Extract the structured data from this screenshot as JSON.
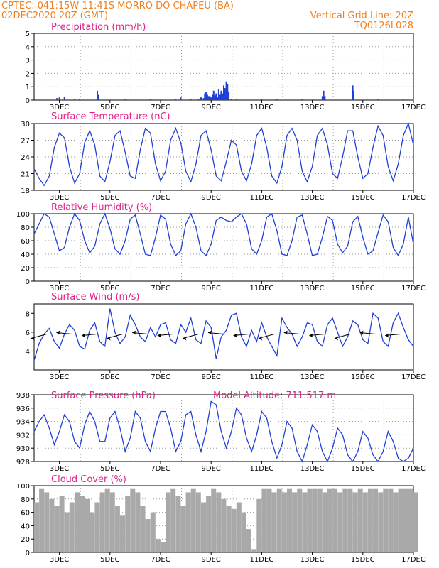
{
  "header": {
    "line1_left": "CPTEC:  041:15W-11:41S  MORRO DO CHAPEU (BA)",
    "line2_left": "02DEC2020 20Z (GMT)",
    "line2_right": "Vertical Grid Line: 20Z",
    "line3_right": "TQ0126L028"
  },
  "colors": {
    "header": "#f07f1e",
    "panel_title": "#e0218a",
    "series": "#1f3fd6",
    "cloud": "#a9a9a9",
    "grid": "#9a9a9a"
  },
  "x_axis": {
    "ticks": [
      "3DEC",
      "5DEC",
      "7DEC",
      "9DEC",
      "11DEC",
      "13DEC",
      "15DEC",
      "17DEC"
    ]
  },
  "chart_data": [
    {
      "id": "precip",
      "type": "bar",
      "title": "Precipitation (mm/h)",
      "ylim": [
        0,
        5
      ],
      "yticks": [
        "0",
        "1",
        "2",
        "3",
        "4",
        "5"
      ],
      "grid": true,
      "x": [
        2.9,
        3.0,
        3.2,
        3.6,
        3.8,
        4.5,
        4.55,
        5.6,
        6.6,
        7.6,
        7.8,
        8.2,
        8.5,
        8.6,
        8.7,
        8.75,
        8.8,
        8.85,
        8.9,
        8.95,
        9.0,
        9.05,
        9.1,
        9.15,
        9.2,
        9.25,
        9.3,
        9.35,
        9.4,
        9.45,
        9.5,
        9.55,
        9.6,
        9.65,
        9.7,
        9.8,
        10.0,
        11.0,
        11.6,
        12.6,
        13.4,
        13.45,
        13.5,
        14.6,
        14.62,
        15.6,
        16.6
      ],
      "values": [
        0.15,
        0.2,
        0.25,
        0.1,
        0.1,
        0.7,
        0.4,
        0.1,
        0.1,
        0.1,
        0.2,
        0.1,
        0.1,
        0.2,
        0.15,
        0.5,
        0.6,
        0.4,
        0.3,
        0.3,
        0.2,
        0.4,
        0.7,
        0.35,
        0.5,
        0.2,
        0.8,
        0.4,
        0.7,
        0.5,
        1.1,
        0.9,
        1.4,
        1.2,
        0.6,
        0.1,
        0.1,
        0.1,
        0.1,
        0.1,
        0.3,
        0.7,
        0.3,
        1.1,
        0.7,
        0.1,
        0.1
      ]
    },
    {
      "id": "temp",
      "type": "line",
      "title": "Surface Temperature (nC)",
      "ylim": [
        16,
        30
      ],
      "yticks": [
        "18",
        "21",
        "24",
        "27",
        "30"
      ],
      "grid": true,
      "x": [
        2.0,
        2.2,
        2.4,
        2.6,
        2.8,
        3.0,
        3.2,
        3.4,
        3.6,
        3.8,
        4.0,
        4.2,
        4.4,
        4.6,
        4.8,
        5.0,
        5.2,
        5.4,
        5.6,
        5.8,
        6.0,
        6.2,
        6.4,
        6.6,
        6.8,
        7.0,
        7.2,
        7.4,
        7.6,
        7.8,
        8.0,
        8.2,
        8.4,
        8.6,
        8.8,
        9.0,
        9.2,
        9.4,
        9.6,
        9.8,
        10.0,
        10.2,
        10.4,
        10.6,
        10.8,
        11.0,
        11.2,
        11.4,
        11.6,
        11.8,
        12.0,
        12.2,
        12.4,
        12.6,
        12.8,
        13.0,
        13.2,
        13.4,
        13.6,
        13.8,
        14.0,
        14.2,
        14.4,
        14.6,
        14.8,
        15.0,
        15.2,
        15.4,
        15.6,
        15.8,
        16.0,
        16.2,
        16.4,
        16.6,
        16.8,
        17.0
      ],
      "values": [
        20.5,
        18.5,
        17.0,
        19.0,
        25.0,
        28.0,
        27.0,
        21.0,
        17.5,
        19.5,
        26.0,
        28.5,
        25.5,
        19.0,
        17.8,
        22.0,
        27.5,
        28.5,
        24.0,
        19.0,
        18.5,
        24.5,
        29.0,
        28.0,
        21.5,
        18.0,
        20.0,
        26.5,
        29.0,
        26.0,
        20.0,
        17.8,
        21.5,
        27.5,
        28.5,
        24.5,
        19.0,
        18.0,
        22.0,
        26.5,
        25.5,
        20.0,
        18.0,
        21.5,
        27.5,
        29.0,
        25.0,
        19.0,
        17.5,
        21.0,
        27.5,
        29.0,
        26.5,
        20.0,
        17.8,
        21.0,
        27.5,
        29.0,
        25.5,
        19.5,
        18.5,
        23.0,
        28.5,
        28.5,
        23.0,
        18.5,
        19.5,
        25.0,
        29.5,
        27.5,
        21.0,
        18.0,
        21.5,
        27.5,
        30.0,
        25.5
      ]
    },
    {
      "id": "rh",
      "type": "line",
      "title": "Relative Humidity (%)",
      "ylim": [
        0,
        100
      ],
      "yticks": [
        "0",
        "20",
        "40",
        "60",
        "80",
        "100"
      ],
      "grid": true,
      "x": [
        2.0,
        2.2,
        2.4,
        2.6,
        2.8,
        3.0,
        3.2,
        3.4,
        3.6,
        3.8,
        4.0,
        4.2,
        4.4,
        4.6,
        4.8,
        5.0,
        5.2,
        5.4,
        5.6,
        5.8,
        6.0,
        6.2,
        6.4,
        6.6,
        6.8,
        7.0,
        7.2,
        7.4,
        7.6,
        7.8,
        8.0,
        8.2,
        8.4,
        8.6,
        8.8,
        9.0,
        9.2,
        9.4,
        9.6,
        9.8,
        10.0,
        10.2,
        10.4,
        10.6,
        10.8,
        11.0,
        11.2,
        11.4,
        11.6,
        11.8,
        12.0,
        12.2,
        12.4,
        12.6,
        12.8,
        13.0,
        13.2,
        13.4,
        13.6,
        13.8,
        14.0,
        14.2,
        14.4,
        14.6,
        14.8,
        15.0,
        15.2,
        15.4,
        15.6,
        15.8,
        16.0,
        16.2,
        16.4,
        16.6,
        16.8,
        17.0
      ],
      "values": [
        70,
        85,
        100,
        95,
        70,
        45,
        50,
        80,
        100,
        90,
        60,
        42,
        52,
        85,
        100,
        78,
        48,
        40,
        60,
        92,
        98,
        70,
        40,
        38,
        65,
        98,
        92,
        55,
        38,
        45,
        85,
        100,
        80,
        45,
        38,
        55,
        90,
        95,
        90,
        88,
        95,
        100,
        85,
        48,
        40,
        60,
        95,
        100,
        75,
        40,
        38,
        60,
        95,
        98,
        70,
        38,
        40,
        65,
        96,
        90,
        55,
        42,
        52,
        88,
        96,
        65,
        40,
        45,
        72,
        98,
        88,
        50,
        38,
        55,
        95,
        55
      ]
    },
    {
      "id": "wind",
      "type": "line",
      "title": "Surface Wind (m/s)",
      "ylim": [
        2,
        9
      ],
      "yticks": [
        "4",
        "6",
        "8"
      ],
      "grid": false,
      "x": [
        2.0,
        2.2,
        2.4,
        2.6,
        2.8,
        3.0,
        3.2,
        3.4,
        3.6,
        3.8,
        4.0,
        4.2,
        4.4,
        4.6,
        4.8,
        5.0,
        5.2,
        5.4,
        5.6,
        5.8,
        6.0,
        6.2,
        6.4,
        6.6,
        6.8,
        7.0,
        7.2,
        7.4,
        7.6,
        7.8,
        8.0,
        8.2,
        8.4,
        8.6,
        8.8,
        9.0,
        9.2,
        9.4,
        9.6,
        9.8,
        10.0,
        10.2,
        10.4,
        10.6,
        10.8,
        11.0,
        11.2,
        11.4,
        11.6,
        11.8,
        12.0,
        12.2,
        12.4,
        12.6,
        12.8,
        13.0,
        13.2,
        13.4,
        13.6,
        13.8,
        14.0,
        14.2,
        14.4,
        14.6,
        14.8,
        15.0,
        15.2,
        15.4,
        15.6,
        15.8,
        16.0,
        16.2,
        16.4,
        16.6,
        16.8,
        17.0
      ],
      "values": [
        3.0,
        4.8,
        5.8,
        6.4,
        5.0,
        4.3,
        5.8,
        6.8,
        6.2,
        4.5,
        4.2,
        6.2,
        7.0,
        5.0,
        4.5,
        8.5,
        6.0,
        4.8,
        5.5,
        7.8,
        6.8,
        5.5,
        5.0,
        6.5,
        5.5,
        6.8,
        7.0,
        5.2,
        4.8,
        6.8,
        6.0,
        7.5,
        5.2,
        4.8,
        7.2,
        6.5,
        3.2,
        5.5,
        6.2,
        7.8,
        8.0,
        5.5,
        4.5,
        6.2,
        5.0,
        7.0,
        5.5,
        4.5,
        3.5,
        7.5,
        6.5,
        5.8,
        4.5,
        5.5,
        7.0,
        6.8,
        5.0,
        4.5,
        6.8,
        7.5,
        6.0,
        4.5,
        5.5,
        7.2,
        6.8,
        5.2,
        4.8,
        8.0,
        7.5,
        5.0,
        4.5,
        7.0,
        8.0,
        6.5,
        5.2,
        4.5
      ]
    },
    {
      "id": "pres",
      "type": "line",
      "title": "Surface Pressure (hPa)",
      "annotation": "Model Altitude: 711.517 m",
      "ylim": [
        928,
        938
      ],
      "yticks": [
        "928",
        "930",
        "932",
        "934",
        "936",
        "938"
      ],
      "grid": true,
      "x": [
        2.0,
        2.2,
        2.4,
        2.6,
        2.8,
        3.0,
        3.2,
        3.4,
        3.6,
        3.8,
        4.0,
        4.2,
        4.4,
        4.6,
        4.8,
        5.0,
        5.2,
        5.4,
        5.6,
        5.8,
        6.0,
        6.2,
        6.4,
        6.6,
        6.8,
        7.0,
        7.2,
        7.4,
        7.6,
        7.8,
        8.0,
        8.2,
        8.4,
        8.6,
        8.8,
        9.0,
        9.2,
        9.4,
        9.6,
        9.8,
        10.0,
        10.2,
        10.4,
        10.6,
        10.8,
        11.0,
        11.2,
        11.4,
        11.6,
        11.8,
        12.0,
        12.2,
        12.4,
        12.6,
        12.8,
        13.0,
        13.2,
        13.4,
        13.6,
        13.8,
        14.0,
        14.2,
        14.4,
        14.6,
        14.8,
        15.0,
        15.2,
        15.4,
        15.6,
        15.8,
        16.0,
        16.2,
        16.4,
        16.6,
        16.8,
        17.0
      ],
      "values": [
        932.5,
        934.0,
        935.0,
        933.0,
        930.5,
        932.5,
        935.0,
        934.0,
        931.0,
        930.0,
        933.5,
        935.5,
        934.0,
        931.0,
        931.0,
        934.5,
        935.5,
        933.0,
        929.5,
        931.5,
        935.5,
        934.5,
        931.0,
        929.5,
        933.0,
        935.5,
        935.5,
        933.0,
        929.5,
        931.0,
        935.0,
        935.5,
        932.0,
        929.5,
        932.5,
        937.0,
        936.5,
        932.5,
        930.0,
        932.5,
        936.0,
        935.0,
        931.5,
        929.5,
        932.0,
        935.5,
        934.5,
        931.0,
        928.5,
        930.5,
        934.0,
        933.0,
        929.5,
        928.0,
        930.5,
        933.5,
        932.5,
        929.5,
        928.0,
        930.0,
        933.0,
        932.0,
        929.0,
        928.0,
        929.5,
        932.5,
        931.5,
        929.0,
        927.5,
        929.5,
        932.5,
        931.0,
        928.5,
        927.5,
        928.5,
        930.0
      ]
    },
    {
      "id": "cloud",
      "type": "bar",
      "title": "Cloud Cover (%)",
      "ylim": [
        0,
        100
      ],
      "yticks": [
        "0",
        "20",
        "40",
        "60",
        "80",
        "100"
      ],
      "grid": true,
      "x": [
        2.0,
        2.2,
        2.4,
        2.6,
        2.8,
        3.0,
        3.2,
        3.4,
        3.6,
        3.8,
        4.0,
        4.2,
        4.4,
        4.6,
        4.8,
        5.0,
        5.2,
        5.4,
        5.6,
        5.8,
        6.0,
        6.2,
        6.4,
        6.6,
        6.8,
        7.0,
        7.2,
        7.4,
        7.6,
        7.8,
        8.0,
        8.2,
        8.4,
        8.6,
        8.8,
        9.0,
        9.2,
        9.4,
        9.6,
        9.8,
        10.0,
        10.2,
        10.4,
        10.6,
        10.8,
        11.0,
        11.2,
        11.4,
        11.6,
        11.8,
        12.0,
        12.2,
        12.4,
        12.6,
        12.8,
        13.0,
        13.2,
        13.4,
        13.6,
        13.8,
        14.0,
        14.2,
        14.4,
        14.6,
        14.8,
        15.0,
        15.2,
        15.4,
        15.6,
        15.8,
        16.0,
        16.2,
        16.4,
        16.6,
        16.8,
        17.0
      ],
      "values": [
        75,
        95,
        90,
        80,
        70,
        85,
        60,
        75,
        90,
        85,
        80,
        60,
        75,
        90,
        95,
        90,
        70,
        55,
        85,
        95,
        90,
        70,
        50,
        60,
        20,
        15,
        90,
        95,
        85,
        70,
        90,
        95,
        90,
        75,
        85,
        95,
        90,
        80,
        70,
        65,
        75,
        60,
        35,
        5,
        80,
        95,
        95,
        90,
        95,
        90,
        95,
        90,
        95,
        90,
        95,
        95,
        95,
        90,
        95,
        95,
        90,
        95,
        95,
        90,
        95,
        90,
        95,
        95,
        90,
        95,
        95,
        90,
        95,
        95,
        95,
        90
      ]
    }
  ]
}
